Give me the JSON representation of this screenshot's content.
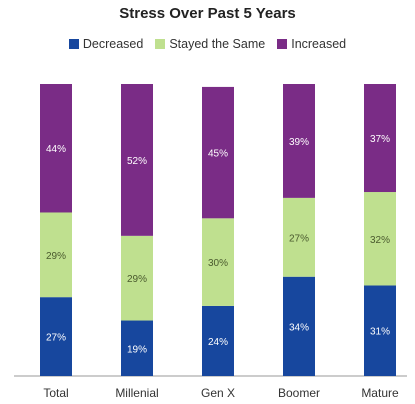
{
  "chart_data": {
    "type": "bar",
    "stacked": true,
    "title": "Stress Over Past 5 Years",
    "categories": [
      "Total",
      "Millenial",
      "Gen X",
      "Boomer",
      "Mature"
    ],
    "series": [
      {
        "name": "Decreased",
        "color": "#17479e",
        "values": [
          27,
          19,
          24,
          34,
          31
        ],
        "labels": [
          "27%",
          "19%",
          "24%",
          "34%",
          "31%"
        ]
      },
      {
        "name": "Stayed the Same",
        "color": "#bfe08f",
        "values": [
          29,
          29,
          30,
          27,
          32
        ],
        "labels": [
          "29%",
          "29%",
          "30%",
          "27%",
          "32%"
        ]
      },
      {
        "name": "Increased",
        "color": "#7a2c86",
        "values": [
          44,
          52,
          45,
          39,
          37
        ],
        "labels": [
          "44%",
          "52%",
          "45%",
          "39%",
          "37%"
        ]
      }
    ],
    "ylim": [
      0,
      100
    ],
    "legend_position": "top-center",
    "grid": false
  }
}
